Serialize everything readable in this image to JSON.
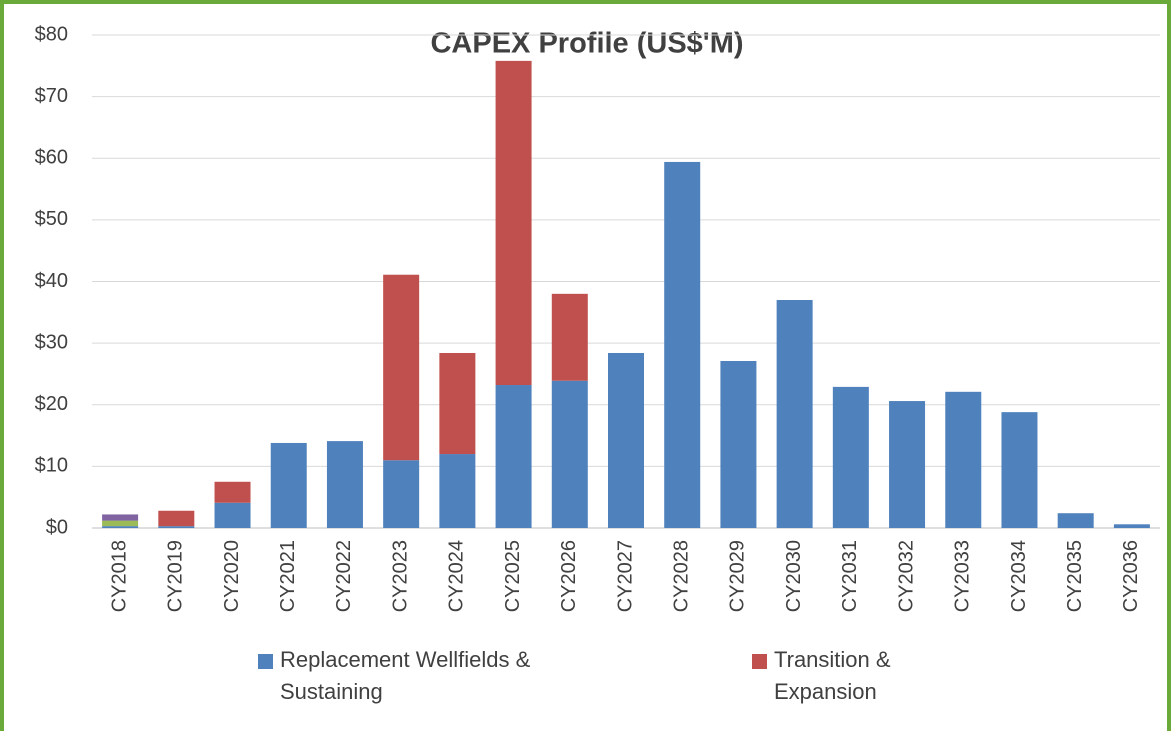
{
  "chart_data": {
    "type": "stacked_bar",
    "title": "CAPEX Profile (US$'M)",
    "categories": [
      "CY2018",
      "CY2019",
      "CY2020",
      "CY2021",
      "CY2022",
      "CY2023",
      "CY2024",
      "CY2025",
      "CY2026",
      "CY2027",
      "CY2028",
      "CY2029",
      "CY2030",
      "CY2031",
      "CY2032",
      "CY2033",
      "CY2034",
      "CY2035",
      "CY2036"
    ],
    "series": [
      {
        "name": "Replacement Wellfields & Sustaining",
        "color": "#4f81bd",
        "values": [
          0.3,
          0.3,
          4.1,
          13.8,
          14.1,
          11.0,
          12.0,
          23.2,
          23.9,
          28.4,
          59.4,
          27.1,
          37.0,
          22.9,
          20.6,
          22.1,
          18.8,
          2.4,
          0.6
        ]
      },
      {
        "name": "Transition & Expansion",
        "color": "#c0504d",
        "values": [
          null,
          2.5,
          3.4,
          null,
          null,
          30.1,
          16.4,
          52.6,
          14.1,
          null,
          null,
          null,
          null,
          null,
          null,
          null,
          null,
          null,
          null
        ]
      },
      {
        "color": "#9bbb59",
        "values": [
          0.9,
          null,
          null,
          null,
          null,
          null,
          null,
          null,
          null,
          null,
          null,
          null,
          null,
          null,
          null,
          null,
          null,
          null,
          null
        ]
      },
      {
        "color": "#8064a2",
        "values": [
          1.0,
          null,
          null,
          null,
          null,
          null,
          null,
          null,
          null,
          null,
          null,
          null,
          null,
          null,
          null,
          null,
          null,
          null,
          null
        ]
      }
    ],
    "ylim": [
      0,
      80
    ],
    "yticks": [
      {
        "value": 0,
        "label": "$0"
      },
      {
        "value": 10,
        "label": "$10"
      },
      {
        "value": 20,
        "label": "$20"
      },
      {
        "value": 30,
        "label": "$30"
      },
      {
        "value": 40,
        "label": "$40"
      },
      {
        "value": 50,
        "label": "$50"
      },
      {
        "value": 60,
        "label": "$60"
      },
      {
        "value": 70,
        "label": "$70"
      },
      {
        "value": 80,
        "label": "$80"
      }
    ],
    "grid": true
  }
}
